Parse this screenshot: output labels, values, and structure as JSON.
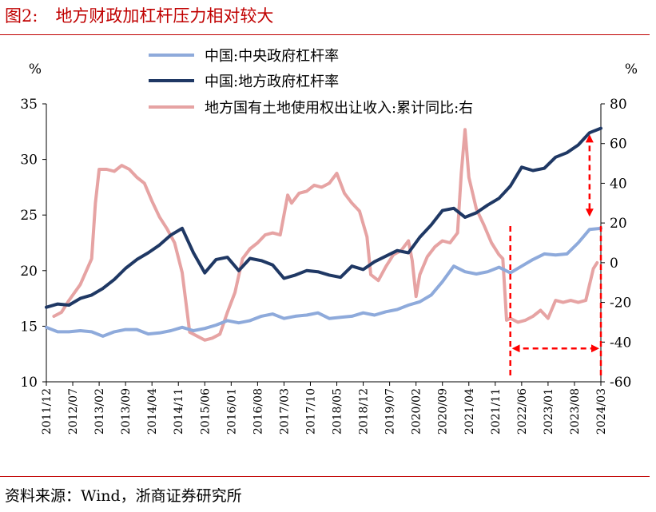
{
  "header": {
    "figure_label": "图2:",
    "title": "地方财政加杠杆压力相对较大"
  },
  "footer": {
    "source": "资料来源：Wind，浙商证券研究所"
  },
  "colors": {
    "title": "#c00000",
    "rule": "#c00000",
    "central": "#8eaadb",
    "local": "#1f3864",
    "land": "#e6a3a3",
    "annotation": "#ff0000"
  },
  "chart_data": {
    "type": "line",
    "title": "地方财政加杠杆压力相对较大",
    "xlabel": "",
    "ylabel_left": "%",
    "ylabel_right": "%",
    "ylim_left": [
      10,
      35
    ],
    "ylim_right": [
      -60,
      80
    ],
    "yticks_left": [
      "10",
      "15",
      "20",
      "25",
      "30",
      "35"
    ],
    "yticks_right": [
      "-60",
      "-40",
      "-20",
      "0",
      "20",
      "40",
      "60",
      "80"
    ],
    "x_tick_labels": [
      "2011/12",
      "2012/07",
      "2013/02",
      "2013/09",
      "2014/04",
      "2014/11",
      "2015/06",
      "2016/01",
      "2016/08",
      "2017/03",
      "2017/10",
      "2018/05",
      "2018/12",
      "2019/07",
      "2020/02",
      "2020/09",
      "2021/04",
      "2021/11",
      "2022/06",
      "2023/01",
      "2023/08",
      "2024/03"
    ],
    "x_start": "2011/12",
    "x_end": "2024/03",
    "legend_position": "top",
    "grid": false,
    "series": [
      {
        "name": "中国:中央政府杠杆率",
        "axis": "left",
        "points": [
          [
            "2011/12",
            14.9
          ],
          [
            "2012/03",
            14.5
          ],
          [
            "2012/06",
            14.5
          ],
          [
            "2012/09",
            14.6
          ],
          [
            "2012/12",
            14.5
          ],
          [
            "2013/03",
            14.1
          ],
          [
            "2013/06",
            14.5
          ],
          [
            "2013/09",
            14.7
          ],
          [
            "2013/12",
            14.7
          ],
          [
            "2014/03",
            14.3
          ],
          [
            "2014/06",
            14.4
          ],
          [
            "2014/09",
            14.6
          ],
          [
            "2014/12",
            14.9
          ],
          [
            "2015/03",
            14.6
          ],
          [
            "2015/06",
            14.8
          ],
          [
            "2015/09",
            15.1
          ],
          [
            "2015/12",
            15.5
          ],
          [
            "2016/03",
            15.3
          ],
          [
            "2016/06",
            15.5
          ],
          [
            "2016/09",
            15.9
          ],
          [
            "2016/12",
            16.1
          ],
          [
            "2017/03",
            15.7
          ],
          [
            "2017/06",
            15.9
          ],
          [
            "2017/09",
            16.0
          ],
          [
            "2017/12",
            16.2
          ],
          [
            "2018/03",
            15.7
          ],
          [
            "2018/06",
            15.8
          ],
          [
            "2018/09",
            15.9
          ],
          [
            "2018/12",
            16.2
          ],
          [
            "2019/03",
            16.0
          ],
          [
            "2019/06",
            16.3
          ],
          [
            "2019/09",
            16.5
          ],
          [
            "2019/12",
            16.9
          ],
          [
            "2020/03",
            17.2
          ],
          [
            "2020/06",
            17.8
          ],
          [
            "2020/09",
            19.0
          ],
          [
            "2020/12",
            20.4
          ],
          [
            "2021/03",
            19.9
          ],
          [
            "2021/06",
            19.7
          ],
          [
            "2021/09",
            19.9
          ],
          [
            "2021/12",
            20.3
          ],
          [
            "2022/03",
            19.8
          ],
          [
            "2022/06",
            20.4
          ],
          [
            "2022/09",
            21.0
          ],
          [
            "2022/12",
            21.5
          ],
          [
            "2023/03",
            21.4
          ],
          [
            "2023/06",
            21.5
          ],
          [
            "2023/09",
            22.5
          ],
          [
            "2023/12",
            23.7
          ],
          [
            "2024/03",
            23.8
          ]
        ]
      },
      {
        "name": "中国:地方政府杠杆率",
        "axis": "left",
        "points": [
          [
            "2011/12",
            16.7
          ],
          [
            "2012/03",
            17.0
          ],
          [
            "2012/06",
            16.9
          ],
          [
            "2012/09",
            17.5
          ],
          [
            "2012/12",
            17.8
          ],
          [
            "2013/03",
            18.4
          ],
          [
            "2013/06",
            19.2
          ],
          [
            "2013/09",
            20.2
          ],
          [
            "2013/12",
            21.0
          ],
          [
            "2014/03",
            21.6
          ],
          [
            "2014/06",
            22.3
          ],
          [
            "2014/09",
            23.2
          ],
          [
            "2014/12",
            23.8
          ],
          [
            "2015/03",
            21.6
          ],
          [
            "2015/06",
            19.8
          ],
          [
            "2015/09",
            21.0
          ],
          [
            "2015/12",
            21.2
          ],
          [
            "2016/03",
            20.0
          ],
          [
            "2016/06",
            21.1
          ],
          [
            "2016/09",
            20.9
          ],
          [
            "2016/12",
            20.5
          ],
          [
            "2017/03",
            19.3
          ],
          [
            "2017/06",
            19.6
          ],
          [
            "2017/09",
            20.0
          ],
          [
            "2017/12",
            19.9
          ],
          [
            "2018/03",
            19.6
          ],
          [
            "2018/06",
            19.4
          ],
          [
            "2018/09",
            20.4
          ],
          [
            "2018/12",
            20.1
          ],
          [
            "2019/03",
            20.8
          ],
          [
            "2019/06",
            21.3
          ],
          [
            "2019/09",
            21.8
          ],
          [
            "2019/12",
            21.6
          ],
          [
            "2020/03",
            23.0
          ],
          [
            "2020/06",
            24.1
          ],
          [
            "2020/09",
            25.4
          ],
          [
            "2020/12",
            25.6
          ],
          [
            "2021/03",
            24.8
          ],
          [
            "2021/06",
            25.2
          ],
          [
            "2021/09",
            25.9
          ],
          [
            "2021/12",
            26.5
          ],
          [
            "2022/03",
            27.6
          ],
          [
            "2022/06",
            29.3
          ],
          [
            "2022/09",
            29.0
          ],
          [
            "2022/12",
            29.2
          ],
          [
            "2023/03",
            30.2
          ],
          [
            "2023/06",
            30.6
          ],
          [
            "2023/09",
            31.3
          ],
          [
            "2023/12",
            32.4
          ],
          [
            "2024/03",
            32.8
          ]
        ]
      },
      {
        "name": "地方国有土地使用权出让收入:累计同比:右",
        "axis": "right",
        "points": [
          [
            "2012/02",
            -27
          ],
          [
            "2012/04",
            -25
          ],
          [
            "2012/06",
            -19
          ],
          [
            "2012/09",
            -11
          ],
          [
            "2012/12",
            2
          ],
          [
            "2013/01",
            30
          ],
          [
            "2013/02",
            47
          ],
          [
            "2013/04",
            47
          ],
          [
            "2013/06",
            46
          ],
          [
            "2013/08",
            49
          ],
          [
            "2013/10",
            47
          ],
          [
            "2013/12",
            43
          ],
          [
            "2014/02",
            40
          ],
          [
            "2014/04",
            31
          ],
          [
            "2014/06",
            23
          ],
          [
            "2014/08",
            17
          ],
          [
            "2014/10",
            10
          ],
          [
            "2014/12",
            -5
          ],
          [
            "2015/02",
            -35
          ],
          [
            "2015/04",
            -37
          ],
          [
            "2015/06",
            -39
          ],
          [
            "2015/08",
            -38
          ],
          [
            "2015/10",
            -36
          ],
          [
            "2015/12",
            -25
          ],
          [
            "2016/02",
            -15
          ],
          [
            "2016/04",
            2
          ],
          [
            "2016/06",
            7
          ],
          [
            "2016/08",
            10
          ],
          [
            "2016/10",
            14
          ],
          [
            "2016/12",
            15
          ],
          [
            "2017/02",
            14
          ],
          [
            "2017/04",
            34
          ],
          [
            "2017/05",
            30
          ],
          [
            "2017/07",
            35
          ],
          [
            "2017/09",
            36
          ],
          [
            "2017/11",
            39
          ],
          [
            "2018/01",
            38
          ],
          [
            "2018/03",
            40
          ],
          [
            "2018/05",
            45
          ],
          [
            "2018/07",
            35
          ],
          [
            "2018/09",
            30
          ],
          [
            "2018/11",
            26
          ],
          [
            "2019/01",
            13
          ],
          [
            "2019/02",
            -6
          ],
          [
            "2019/04",
            -9
          ],
          [
            "2019/06",
            -2
          ],
          [
            "2019/08",
            4
          ],
          [
            "2019/10",
            6
          ],
          [
            "2019/12",
            11
          ],
          [
            "2020/01",
            1
          ],
          [
            "2020/02",
            -17
          ],
          [
            "2020/03",
            -6
          ],
          [
            "2020/05",
            3
          ],
          [
            "2020/07",
            8
          ],
          [
            "2020/09",
            11
          ],
          [
            "2020/11",
            10
          ],
          [
            "2021/01",
            15
          ],
          [
            "2021/02",
            45
          ],
          [
            "2021/03",
            67
          ],
          [
            "2021/04",
            43
          ],
          [
            "2021/06",
            27
          ],
          [
            "2021/08",
            19
          ],
          [
            "2021/10",
            10
          ],
          [
            "2021/12",
            4
          ],
          [
            "2022/01",
            2
          ],
          [
            "2022/02",
            -29
          ],
          [
            "2022/03",
            -28
          ],
          [
            "2022/05",
            -30
          ],
          [
            "2022/07",
            -29
          ],
          [
            "2022/09",
            -27
          ],
          [
            "2022/11",
            -24
          ],
          [
            "2023/01",
            -28
          ],
          [
            "2023/03",
            -19
          ],
          [
            "2023/05",
            -20
          ],
          [
            "2023/07",
            -19
          ],
          [
            "2023/09",
            -20
          ],
          [
            "2023/11",
            -19
          ],
          [
            "2024/01",
            -3
          ],
          [
            "2024/02",
            0
          ]
        ]
      }
    ],
    "annotations": [
      {
        "type": "vertical_dashed_line",
        "x": "2022/03"
      },
      {
        "type": "vertical_dashed_line",
        "x": "2024/03"
      },
      {
        "type": "horizontal_double_arrow",
        "x_from": "2022/03",
        "x_to": "2024/03",
        "y_left": 13.0
      },
      {
        "type": "vertical_double_arrow",
        "x": "2023/12",
        "y_left_from": 32.1,
        "y_left_to": 25.0
      }
    ]
  }
}
